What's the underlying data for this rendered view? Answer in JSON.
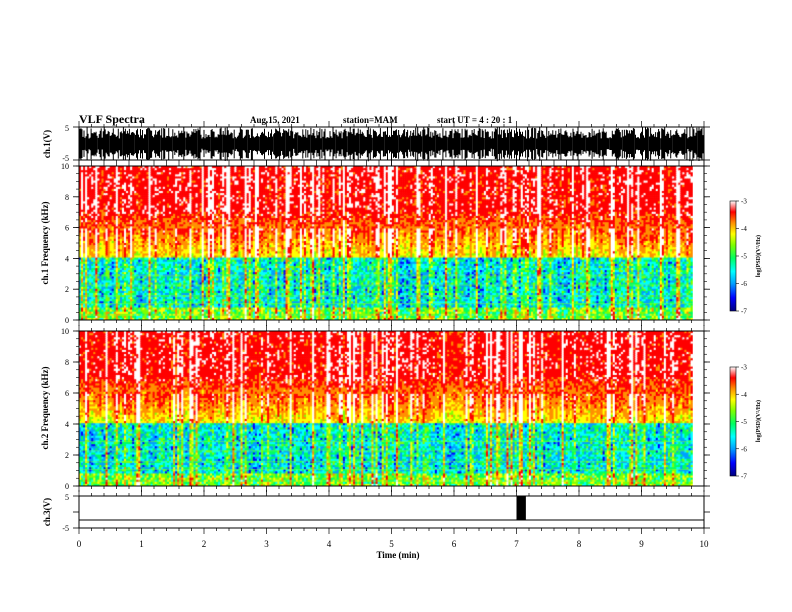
{
  "header": {
    "title": "VLF Spectra",
    "date": "Aug.15, 2021",
    "station": "station=MAM",
    "start": "start UT = 4 : 20 : 1"
  },
  "chart_data": [
    {
      "type": "line",
      "name": "ch1-waveform",
      "ylabel": "ch.1(V)",
      "ylim": [
        -5,
        5
      ],
      "yticks": [
        "5",
        "-5"
      ],
      "xlim": [
        0,
        10
      ]
    },
    {
      "type": "heatmap",
      "name": "ch1-spectrogram",
      "ylabel": "ch.1 Frequency (kHz)",
      "ylim": [
        0,
        10
      ],
      "yticks": [
        "0",
        "2",
        "4",
        "6",
        "8",
        "10"
      ],
      "xlim": [
        0,
        9.82
      ],
      "colorbar": {
        "label": "log(PSD)(V²/Hz)",
        "range": [
          -7,
          -3
        ],
        "ticks": [
          "-3",
          "-4",
          "-5",
          "-6",
          "-7"
        ]
      }
    },
    {
      "type": "heatmap",
      "name": "ch2-spectrogram",
      "ylabel": "ch.2 Frequency (kHz)",
      "ylim": [
        0,
        10
      ],
      "yticks": [
        "0",
        "2",
        "4",
        "6",
        "8",
        "10"
      ],
      "xlim": [
        0,
        9.82
      ],
      "colorbar": {
        "label": "log(PSD)(V²/Hz)",
        "range": [
          -7,
          -3
        ],
        "ticks": [
          "-3",
          "-4",
          "-5",
          "-6",
          "-7"
        ]
      }
    },
    {
      "type": "line",
      "name": "ch3-waveform",
      "ylabel": "ch.3(V)",
      "ylim": [
        -5,
        5
      ],
      "yticks": [
        "5",
        "-5"
      ],
      "xlim": [
        0,
        10
      ],
      "pulse": {
        "x_start": 7.0,
        "x_end": 7.15,
        "y_low": -2.5,
        "y_high": 5
      }
    }
  ],
  "xaxis": {
    "label": "Time (min)",
    "ticks": [
      "0",
      "1",
      "2",
      "3",
      "4",
      "5",
      "6",
      "7",
      "8",
      "9",
      "10"
    ]
  },
  "colors": {
    "colormap": [
      "#00007f",
      "#0000ff",
      "#00a0ff",
      "#00ffff",
      "#00ff60",
      "#7fff00",
      "#ffff00",
      "#ff9000",
      "#ff0000",
      "#ffffff"
    ]
  }
}
